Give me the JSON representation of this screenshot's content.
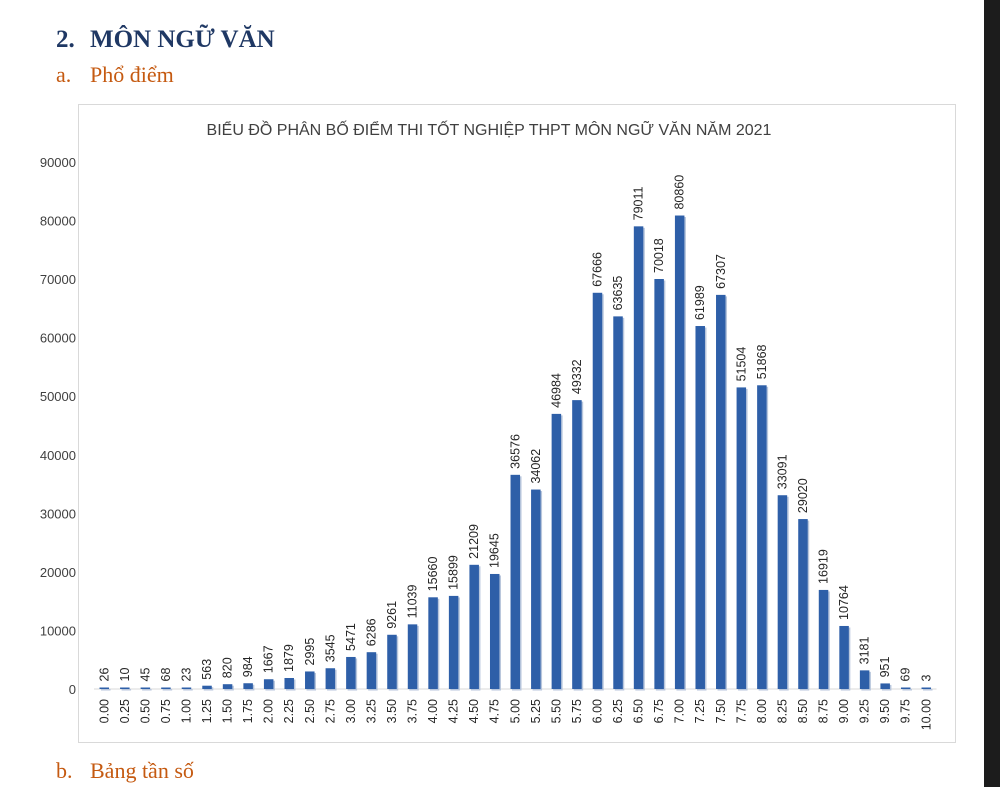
{
  "heading": {
    "number": "2.",
    "text": "MÔN NGỮ VĂN"
  },
  "section_a": {
    "letter": "a.",
    "text": "Phổ điểm"
  },
  "section_b": {
    "letter": "b.",
    "text": "Bảng tần số"
  },
  "colors": {
    "bar": "#2e5fa8",
    "heading": "#1f3864",
    "subheading": "#c55a11"
  },
  "chart_data": {
    "type": "bar",
    "title": "BIỂU ĐỒ PHÂN BỐ ĐIỂM THI TỐT NGHIỆP THPT MÔN NGỮ VĂN NĂM 2021",
    "xlabel": "",
    "ylabel": "",
    "ylim": [
      0,
      90000
    ],
    "yticks": [
      0,
      10000,
      20000,
      30000,
      40000,
      50000,
      60000,
      70000,
      80000,
      90000
    ],
    "grid": false,
    "legend": "none",
    "categories": [
      "0.00",
      "0.25",
      "0.50",
      "0.75",
      "1.00",
      "1.25",
      "1.50",
      "1.75",
      "2.00",
      "2.25",
      "2.50",
      "2.75",
      "3.00",
      "3.25",
      "3.50",
      "3.75",
      "4.00",
      "4.25",
      "4.50",
      "4.75",
      "5.00",
      "5.25",
      "5.50",
      "5.75",
      "6.00",
      "6.25",
      "6.50",
      "6.75",
      "7.00",
      "7.25",
      "7.50",
      "7.75",
      "8.00",
      "8.25",
      "8.50",
      "8.75",
      "9.00",
      "9.25",
      "9.50",
      "9.75",
      "10.00"
    ],
    "values": [
      26,
      10,
      45,
      68,
      23,
      563,
      820,
      984,
      1667,
      1879,
      2995,
      3545,
      5471,
      6286,
      9261,
      11039,
      15660,
      15899,
      21209,
      19645,
      36576,
      34062,
      46984,
      49332,
      67666,
      63635,
      79011,
      70018,
      80860,
      61989,
      67307,
      51504,
      51868,
      33091,
      29020,
      16919,
      10764,
      3181,
      951,
      69,
      3
    ]
  }
}
